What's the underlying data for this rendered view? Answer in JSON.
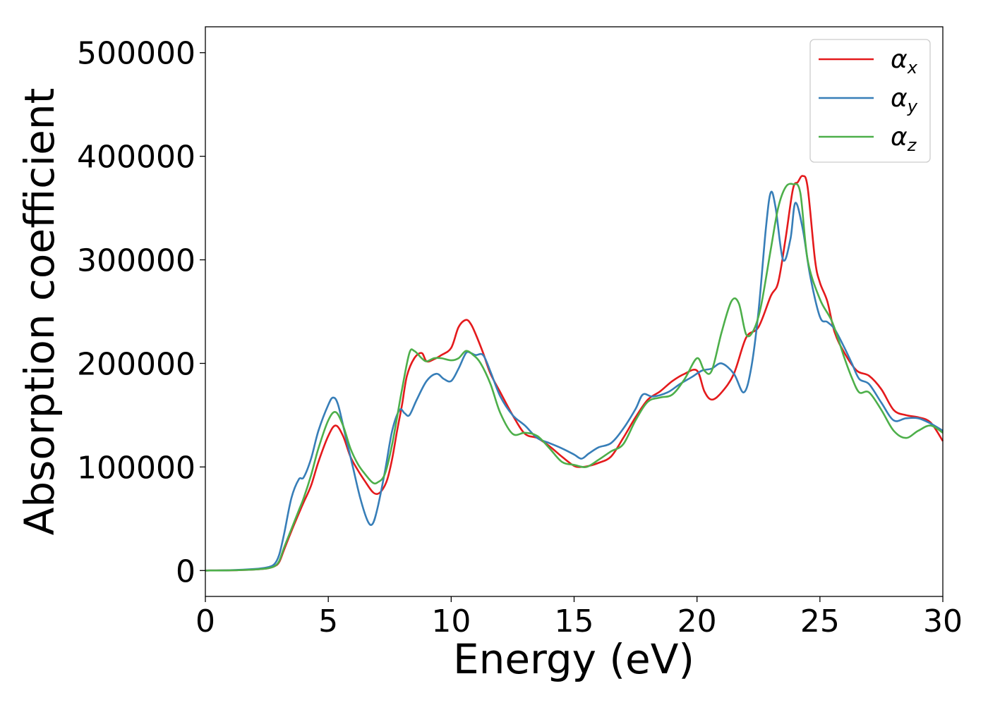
{
  "chart_data": {
    "type": "line",
    "xlabel": "Energy (eV)",
    "ylabel": "Absorption coefficient",
    "xlim": [
      0,
      30
    ],
    "ylim": [
      -25000,
      525000
    ],
    "xticks": [
      "0",
      "5",
      "10",
      "15",
      "20",
      "25",
      "30"
    ],
    "yticks": [
      "0",
      "100000",
      "200000",
      "300000",
      "400000",
      "500000"
    ],
    "grid": false,
    "legend_position": "top-right",
    "series": [
      {
        "name": "α",
        "subscript": "x",
        "color": "#e41a1c",
        "x": [
          0,
          1,
          2,
          2.5,
          2.8,
          3,
          3.2,
          3.5,
          3.8,
          4,
          4.3,
          4.6,
          5,
          5.3,
          5.6,
          5.9,
          6.2,
          6.5,
          6.8,
          7,
          7.2,
          7.4,
          7.6,
          7.8,
          8,
          8.2,
          8.5,
          8.8,
          9,
          9.3,
          9.6,
          10,
          10.3,
          10.6,
          10.8,
          11,
          11.3,
          11.6,
          12,
          12.5,
          13,
          13.5,
          14,
          14.5,
          15,
          15.3,
          15.6,
          16,
          16.5,
          17,
          17.5,
          18,
          18.5,
          19,
          19.5,
          20,
          20.3,
          20.6,
          21,
          21.5,
          22,
          22.5,
          23,
          23.3,
          23.6,
          23.9,
          24.1,
          24.3,
          24.5,
          24.8,
          25,
          25.3,
          25.6,
          26,
          26.5,
          27,
          27.5,
          28,
          28.5,
          29,
          29.5,
          30
        ],
        "y": [
          0,
          200,
          1000,
          2000,
          4000,
          8000,
          20000,
          38000,
          55000,
          66000,
          82000,
          105000,
          130000,
          140000,
          130000,
          110000,
          97000,
          86000,
          76000,
          74000,
          78000,
          88000,
          108000,
          135000,
          160000,
          188000,
          205000,
          210000,
          202000,
          204000,
          208000,
          215000,
          235000,
          242000,
          238000,
          228000,
          210000,
          190000,
          172000,
          150000,
          132000,
          128000,
          120000,
          110000,
          101000,
          100000,
          101000,
          104000,
          110000,
          128000,
          148000,
          165000,
          173000,
          183000,
          190000,
          193000,
          173000,
          165000,
          172000,
          190000,
          225000,
          235000,
          265000,
          278000,
          320000,
          368000,
          375000,
          381000,
          370000,
          300000,
          278000,
          260000,
          230000,
          210000,
          193000,
          188000,
          175000,
          155000,
          150000,
          148000,
          143000,
          125000
        ]
      },
      {
        "name": "α",
        "subscript": "y",
        "color": "#377eb8",
        "x": [
          0,
          1,
          2,
          2.5,
          2.8,
          3,
          3.2,
          3.5,
          3.8,
          4,
          4.3,
          4.6,
          5,
          5.2,
          5.4,
          5.7,
          6,
          6.3,
          6.6,
          6.8,
          7,
          7.3,
          7.6,
          7.9,
          8.1,
          8.3,
          8.6,
          9,
          9.4,
          9.7,
          10,
          10.3,
          10.6,
          10.8,
          11,
          11.3,
          11.6,
          12,
          12.5,
          13,
          13.5,
          14,
          14.5,
          15,
          15.3,
          15.6,
          16,
          16.5,
          17,
          17.5,
          17.8,
          18.2,
          18.8,
          19.3,
          19.8,
          20.2,
          20.6,
          21,
          21.5,
          21.9,
          22.2,
          22.5,
          22.8,
          23,
          23.2,
          23.5,
          23.8,
          24,
          24.3,
          24.6,
          25,
          25.3,
          25.6,
          26,
          26.3,
          26.6,
          27,
          27.5,
          28,
          28.5,
          29,
          29.5,
          30
        ],
        "y": [
          0,
          300,
          1500,
          3000,
          6000,
          15000,
          35000,
          70000,
          88000,
          90000,
          108000,
          135000,
          160000,
          167000,
          160000,
          130000,
          100000,
          70000,
          48000,
          45000,
          60000,
          95000,
          135000,
          155000,
          152000,
          150000,
          165000,
          183000,
          190000,
          185000,
          183000,
          195000,
          210000,
          210000,
          208000,
          208000,
          192000,
          168000,
          150000,
          140000,
          128000,
          123000,
          118000,
          112000,
          108000,
          113000,
          119000,
          123000,
          137000,
          156000,
          170000,
          168000,
          172000,
          180000,
          187000,
          193000,
          195000,
          200000,
          190000,
          172000,
          195000,
          250000,
          330000,
          365000,
          350000,
          300000,
          320000,
          355000,
          330000,
          285000,
          245000,
          240000,
          233000,
          215000,
          200000,
          185000,
          180000,
          162000,
          145000,
          147000,
          147000,
          142000,
          135000
        ]
      },
      {
        "name": "α",
        "subscript": "z",
        "color": "#4daf4a",
        "x": [
          0,
          1,
          2,
          2.5,
          2.8,
          3,
          3.2,
          3.5,
          3.8,
          4,
          4.3,
          4.6,
          5,
          5.3,
          5.6,
          5.9,
          6.2,
          6.5,
          6.8,
          7,
          7.3,
          7.6,
          8,
          8.3,
          8.5,
          8.8,
          9,
          9.3,
          9.6,
          10,
          10.3,
          10.6,
          10.9,
          11.2,
          11.6,
          12,
          12.5,
          13,
          13.5,
          14,
          14.5,
          15,
          15.5,
          16,
          16.5,
          17,
          17.5,
          18,
          18.5,
          19,
          19.5,
          20,
          20.3,
          20.6,
          21,
          21.4,
          21.7,
          22,
          22.3,
          22.6,
          23,
          23.3,
          23.6,
          23.9,
          24.2,
          24.5,
          25,
          25.5,
          26,
          26.3,
          26.6,
          27,
          27.5,
          28,
          28.5,
          29,
          29.5,
          30
        ],
        "y": [
          0,
          200,
          1000,
          2000,
          4000,
          9000,
          22000,
          40000,
          58000,
          70000,
          92000,
          118000,
          145000,
          153000,
          140000,
          118000,
          103000,
          93000,
          85000,
          85000,
          93000,
          122000,
          175000,
          210000,
          212000,
          205000,
          202000,
          205000,
          205000,
          203000,
          205000,
          212000,
          208000,
          200000,
          180000,
          152000,
          132000,
          133000,
          130000,
          118000,
          105000,
          102000,
          100000,
          107000,
          115000,
          122000,
          145000,
          163000,
          167000,
          170000,
          185000,
          205000,
          193000,
          193000,
          230000,
          260000,
          258000,
          228000,
          232000,
          255000,
          310000,
          350000,
          370000,
          373000,
          365000,
          300000,
          262000,
          240000,
          205000,
          186000,
          172000,
          172000,
          155000,
          135000,
          128000,
          135000,
          140000,
          133000
        ]
      }
    ]
  }
}
